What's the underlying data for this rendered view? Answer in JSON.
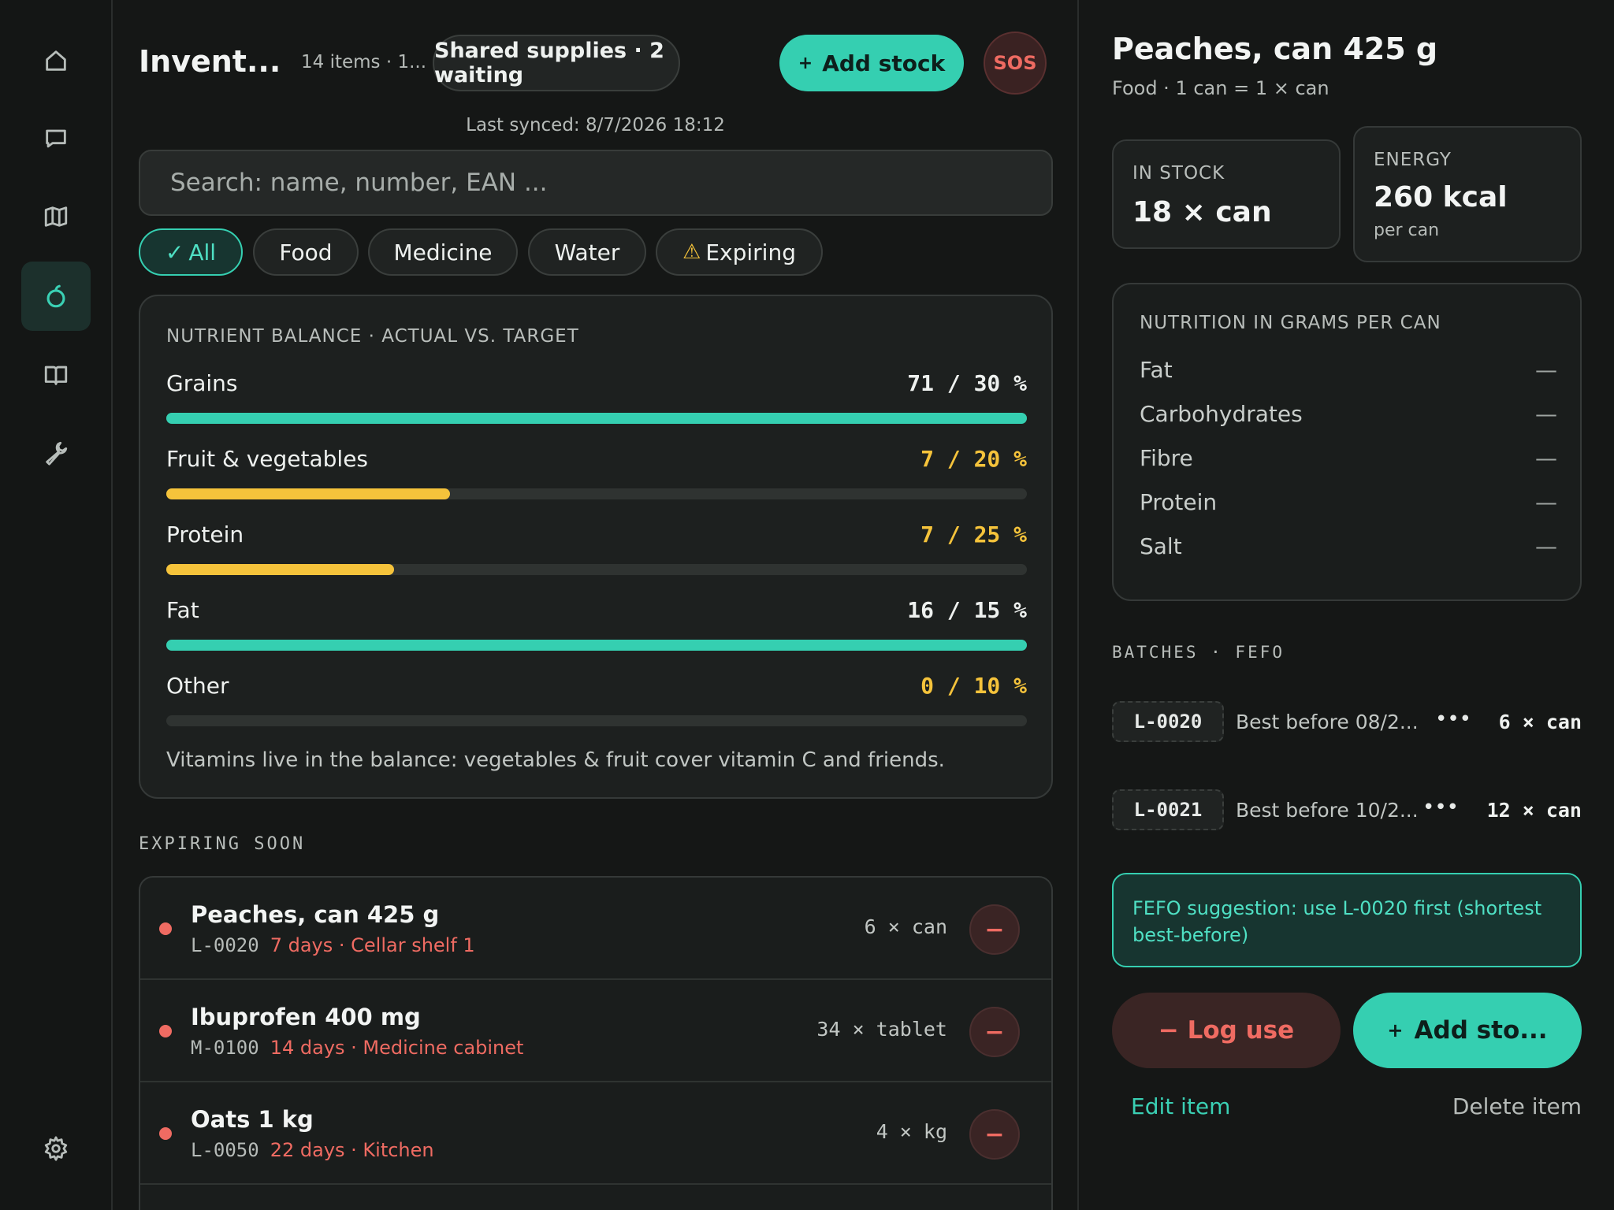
{
  "sidebar": {
    "items": [
      {
        "icon": "home-icon"
      },
      {
        "icon": "chat-icon"
      },
      {
        "icon": "map-icon"
      },
      {
        "icon": "apple-icon",
        "active": true
      },
      {
        "icon": "book-icon"
      },
      {
        "icon": "wrench-icon"
      }
    ],
    "settings_icon": "gear-icon"
  },
  "header": {
    "title": "Invent...",
    "count": "14 items · 1...",
    "shared_label": "Shared supplies · 2 waiting",
    "add_stock_label": "Add stock",
    "sos_label": "SOS"
  },
  "synced": "Last synced: 8/7/2026 18:12",
  "search": {
    "placeholder": "Search: name, number, EAN ..."
  },
  "filters": [
    {
      "label": "All",
      "active": true,
      "icon": "✓"
    },
    {
      "label": "Food"
    },
    {
      "label": "Medicine"
    },
    {
      "label": "Water"
    },
    {
      "label": "Expiring",
      "icon": "⚠"
    }
  ],
  "nutrients": {
    "title": "NUTRIENT BALANCE · ACTUAL VS. TARGET",
    "rows": [
      {
        "label": "Grains",
        "value": "71 / 30 %",
        "actual": 71,
        "target": 30,
        "status": "ok",
        "fill": 1.0
      },
      {
        "label": "Fruit & vegetables",
        "value": "7 / 20 %",
        "actual": 7,
        "target": 20,
        "status": "low",
        "fill": 0.33
      },
      {
        "label": "Protein",
        "value": "7 / 25 %",
        "actual": 7,
        "target": 25,
        "status": "low",
        "fill": 0.265
      },
      {
        "label": "Fat",
        "value": "16 / 15 %",
        "actual": 16,
        "target": 15,
        "status": "ok",
        "fill": 1.0
      },
      {
        "label": "Other",
        "value": "0 / 10 %",
        "actual": 0,
        "target": 10,
        "status": "low",
        "fill": 0.0
      }
    ],
    "note": "Vitamins live in the balance: vegetables & fruit cover vitamin C and friends."
  },
  "expiring": {
    "title": "EXPIRING SOON",
    "items": [
      {
        "name": "Peaches, can 425 g",
        "code": "L-0020",
        "detail": "7 days · Cellar shelf 1",
        "qty": "6 × can"
      },
      {
        "name": "Ibuprofen 400 mg",
        "code": "M-0100",
        "detail": "14 days · Medicine cabinet",
        "qty": "34 × tablet"
      },
      {
        "name": "Oats 1 kg",
        "code": "L-0050",
        "detail": "22 days · Kitchen",
        "qty": "4 × kg"
      }
    ],
    "minus_label": "−"
  },
  "detail": {
    "title": "Peaches, can 425 g",
    "subtitle": "Food · 1 can = 1 × can",
    "stock_label": "IN STOCK",
    "stock_value": "18 × can",
    "energy_label": "ENERGY",
    "energy_value": "260 kcal",
    "energy_unit": "per can",
    "nutrition_title": "NUTRITION IN GRAMS PER CAN",
    "nutrition": [
      {
        "label": "Fat",
        "value": "—"
      },
      {
        "label": "Carbohydrates",
        "value": "—"
      },
      {
        "label": "Fibre",
        "value": "—"
      },
      {
        "label": "Protein",
        "value": "—"
      },
      {
        "label": "Salt",
        "value": "—"
      }
    ],
    "batches_title": "BATCHES · FEFO",
    "batches": [
      {
        "code": "L-0020",
        "date": "Best before 08/2...",
        "dots": "•••",
        "qty": "6 × can"
      },
      {
        "code": "L-0021",
        "date": "Best before 10/2...",
        "dots": "•••",
        "qty": "12 × can"
      }
    ],
    "fefo": "FEFO suggestion: use L-0020 first (shortest best-before)",
    "log_use_label": "− Log use",
    "add_stock_label": "Add sto...",
    "edit_label": "Edit item",
    "delete_label": "Delete item"
  },
  "colors": {
    "accent": "#35cfb1",
    "warning": "#f5c33b",
    "danger": "#ef6b62",
    "background": "#151716"
  }
}
